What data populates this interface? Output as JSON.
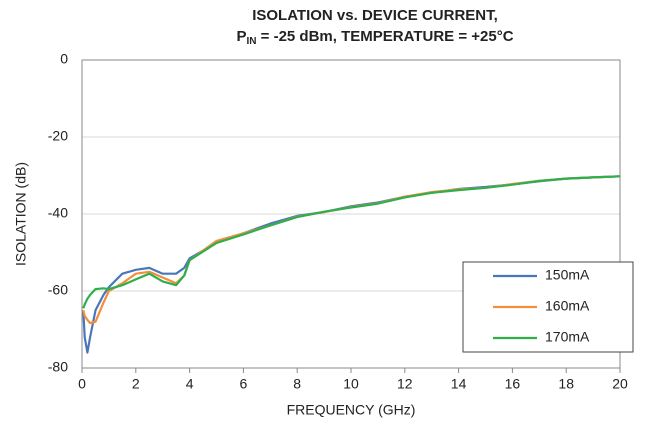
{
  "chart_data": {
    "type": "line",
    "title": "ISOLATION vs. DEVICE CURRENT,",
    "subtitle": [
      "P",
      "IN",
      " = -25 dBm, TEMPERATURE = +25°C"
    ],
    "x_label": "FREQUENCY (GHz)",
    "y_label": "ISOLATION (dB)",
    "x": [
      0.05,
      0.1,
      0.2,
      0.3,
      0.5,
      0.8,
      1,
      1.5,
      2,
      2.5,
      3,
      3.5,
      3.8,
      4,
      5,
      6,
      7,
      8,
      9,
      10,
      11,
      12,
      13,
      14,
      15,
      16,
      17,
      18,
      19,
      20
    ],
    "series": [
      {
        "name": "150mA",
        "color": "#4a77b8",
        "values": [
          -65,
          -72,
          -76,
          -72,
          -65,
          -61,
          -59,
          -55.5,
          -54.5,
          -54,
          -55.5,
          -55.5,
          -54,
          -51.5,
          -47.5,
          -45,
          -42.5,
          -40.5,
          -39.5,
          -38,
          -37,
          -35.5,
          -34.5,
          -33.5,
          -33,
          -32.3,
          -31.5,
          -30.8,
          -30.5,
          -30.2
        ]
      },
      {
        "name": "160mA",
        "color": "#f28e3c",
        "values": [
          -65,
          -66.5,
          -67.5,
          -68.3,
          -68,
          -63,
          -60,
          -58,
          -55.5,
          -55,
          -56.5,
          -58,
          -56,
          -52,
          -47,
          -45,
          -43,
          -40.7,
          -39.5,
          -38.2,
          -37.2,
          -35.5,
          -34.3,
          -33.6,
          -33.2,
          -32.2,
          -31.4,
          -30.8,
          -30.5,
          -30.2
        ]
      },
      {
        "name": "170mA",
        "color": "#2db04c",
        "values": [
          -64.5,
          -63.5,
          -62,
          -61,
          -59.5,
          -59.3,
          -59.5,
          -58.5,
          -57,
          -55.5,
          -57.5,
          -58.5,
          -56,
          -52,
          -47.5,
          -45.3,
          -43,
          -40.8,
          -39.4,
          -38.3,
          -37.3,
          -35.7,
          -34.5,
          -33.8,
          -33.2,
          -32.4,
          -31.4,
          -30.8,
          -30.5,
          -30.2
        ]
      }
    ],
    "xlim": [
      0,
      20
    ],
    "xticks": [
      0,
      2,
      4,
      6,
      8,
      10,
      12,
      14,
      16,
      18,
      20
    ],
    "ylim": [
      -80,
      0
    ],
    "yticks": [
      0,
      -20,
      -40,
      -60,
      -80
    ],
    "grid": true,
    "legend": "lower right"
  }
}
